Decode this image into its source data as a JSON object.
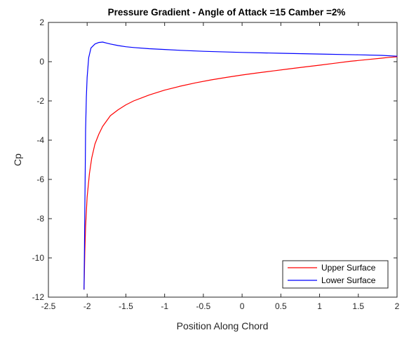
{
  "chart_data": {
    "type": "line",
    "title": "Pressure Gradient - Angle of Attack =15 Camber =2%",
    "xlabel": "Position Along Chord",
    "ylabel": "Cp",
    "xlim": [
      -2.5,
      2
    ],
    "ylim": [
      -12,
      2
    ],
    "xticks": [
      "-2.5",
      "-2",
      "-1.5",
      "-1",
      "-0.5",
      "0",
      "0.5",
      "1",
      "1.5",
      "2"
    ],
    "yticks": [
      "2",
      "0",
      "-2",
      "-4",
      "-6",
      "-8",
      "-10",
      "-12"
    ],
    "grid": false,
    "legend": {
      "placement": "bottom-right"
    },
    "series": [
      {
        "name": "Upper Surface",
        "color": "#ff0000",
        "x": [
          -2.04,
          -2.035,
          -2.03,
          -2.02,
          -2.0,
          -1.97,
          -1.94,
          -1.9,
          -1.85,
          -1.8,
          -1.7,
          -1.6,
          -1.5,
          -1.4,
          -1.3,
          -1.2,
          -1.0,
          -0.8,
          -0.6,
          -0.4,
          -0.2,
          0.0,
          0.2,
          0.4,
          0.6,
          0.8,
          1.0,
          1.2,
          1.4,
          1.6,
          1.8,
          1.9,
          2.0
        ],
        "y": [
          -11.6,
          -10.6,
          -9.7,
          -8.4,
          -6.9,
          -5.7,
          -4.9,
          -4.2,
          -3.7,
          -3.3,
          -2.75,
          -2.45,
          -2.2,
          -2.0,
          -1.85,
          -1.7,
          -1.45,
          -1.25,
          -1.08,
          -0.93,
          -0.8,
          -0.68,
          -0.57,
          -0.47,
          -0.37,
          -0.27,
          -0.18,
          -0.08,
          0.02,
          0.1,
          0.18,
          0.22,
          0.25
        ]
      },
      {
        "name": "Lower Surface",
        "color": "#0000ff",
        "x": [
          -2.04,
          -2.035,
          -2.03,
          -2.025,
          -2.02,
          -2.01,
          -2.0,
          -1.98,
          -1.95,
          -1.9,
          -1.85,
          -1.8,
          -1.75,
          -1.7,
          -1.6,
          -1.5,
          -1.4,
          -1.2,
          -1.0,
          -0.8,
          -0.5,
          0.0,
          0.5,
          1.0,
          1.5,
          1.8,
          2.0
        ],
        "y": [
          -11.6,
          -9.5,
          -7.5,
          -5.5,
          -3.5,
          -1.8,
          -0.8,
          0.2,
          0.7,
          0.9,
          0.98,
          1.0,
          0.95,
          0.9,
          0.82,
          0.76,
          0.72,
          0.66,
          0.62,
          0.58,
          0.53,
          0.47,
          0.43,
          0.39,
          0.35,
          0.32,
          0.28
        ]
      }
    ]
  }
}
